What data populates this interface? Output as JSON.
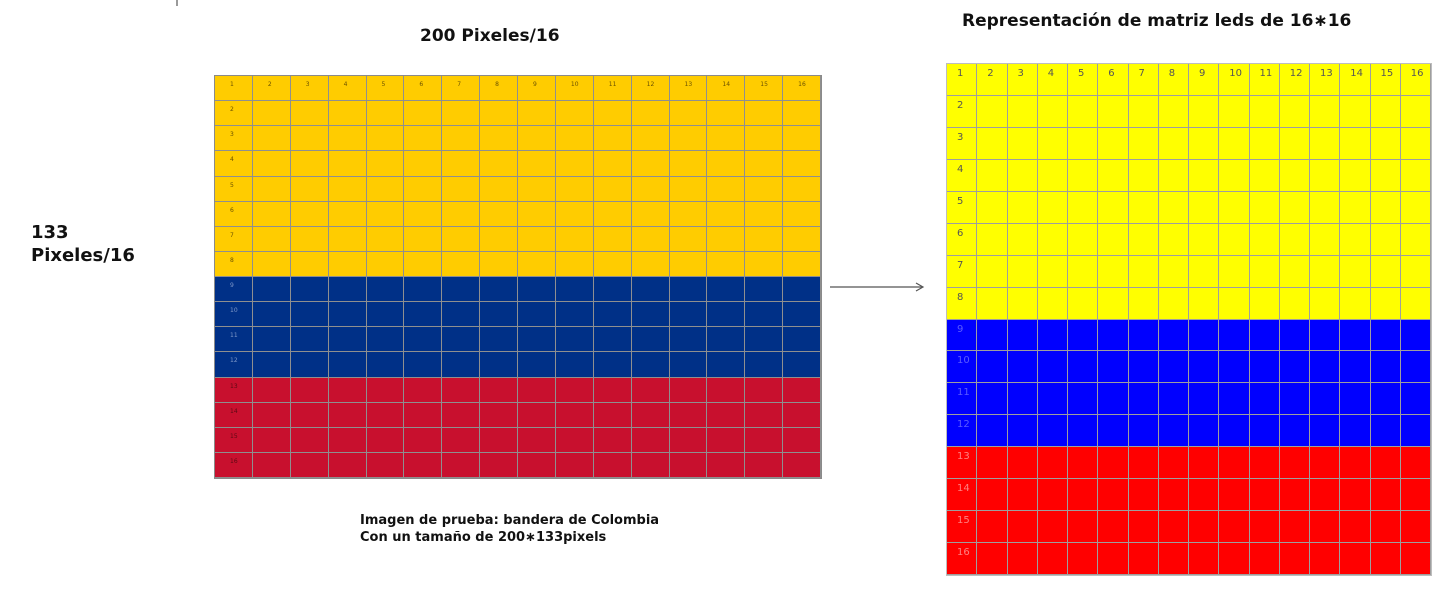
{
  "left_title": "200 Pixeles/16",
  "left_side_label": [
    "133",
    "Pixeles/16"
  ],
  "left_caption": [
    "Imagen de prueba: bandera de Colombia",
    "Con un tamaño de 200∗133pixels"
  ],
  "right_title": "Representación de matriz leds de 16∗16",
  "grid_size": 16,
  "column_labels": [
    "1",
    "2",
    "3",
    "4",
    "5",
    "6",
    "7",
    "8",
    "9",
    "10",
    "11",
    "12",
    "13",
    "14",
    "15",
    "16"
  ],
  "row_labels": [
    "1",
    "2",
    "3",
    "4",
    "5",
    "6",
    "7",
    "8",
    "9",
    "10",
    "11",
    "12",
    "13",
    "14",
    "15",
    "16"
  ],
  "left_grid": {
    "bands": [
      {
        "color": "#FFCC00",
        "label_color": "#6b5200",
        "from_row": 1,
        "to_row": 8
      },
      {
        "color": "#003087",
        "label_color": "#7f98c8",
        "from_row": 9,
        "to_row": 12
      },
      {
        "color": "#C8102E",
        "label_color": "#5a0a14",
        "from_row": 13,
        "to_row": 16
      }
    ]
  },
  "right_grid": {
    "bands": [
      {
        "color": "#FFFF00",
        "label_color": "#555555",
        "from_row": 1,
        "to_row": 8
      },
      {
        "color": "#0000FF",
        "label_color": "#5a5aff",
        "from_row": 9,
        "to_row": 12
      },
      {
        "color": "#FF0000",
        "label_color": "#ff8080",
        "from_row": 13,
        "to_row": 16
      }
    ]
  }
}
